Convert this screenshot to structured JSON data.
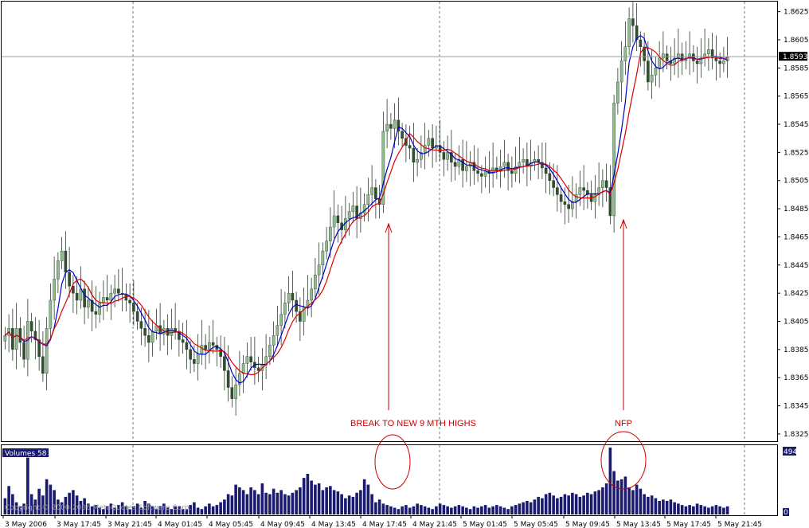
{
  "chart_data": {
    "type": "candlestick",
    "symbol_hint": "GBPUSD",
    "price_axis": {
      "ticks": [
        "1.8625",
        "1.8605",
        "1.8585",
        "1.8565",
        "1.8545",
        "1.8525",
        "1.8505",
        "1.8485",
        "1.8465",
        "1.8445",
        "1.8425",
        "1.8405",
        "1.8385",
        "1.8365",
        "1.8345",
        "1.8325"
      ],
      "min": 1.8321,
      "max": 1.8631,
      "current_price": "1.8593"
    },
    "time_axis": {
      "ticks": [
        "3 May 2006",
        "3 May 17:45",
        "3 May 21:45",
        "4 May 01:45",
        "4 May 05:45",
        "4 May 09:45",
        "4 May 13:45",
        "4 May 17:45",
        "4 May 21:45",
        "5 May 01:45",
        "5 May 05:45",
        "5 May 09:45",
        "5 May 13:45",
        "5 May 17:45",
        "5 May 21:45"
      ]
    },
    "close_series": [
      1.8395,
      1.84,
      1.8385,
      1.84,
      1.839,
      1.8378,
      1.8405,
      1.8398,
      1.8392,
      1.838,
      1.8368,
      1.84,
      1.842,
      1.8435,
      1.8448,
      1.8455,
      1.844,
      1.843,
      1.8425,
      1.842,
      1.8428,
      1.8415,
      1.842,
      1.8412,
      1.841,
      1.8418,
      1.8422,
      1.842,
      1.8425,
      1.8428,
      1.8425,
      1.8424,
      1.842,
      1.8418,
      1.8412,
      1.8405,
      1.84,
      1.8395,
      1.839,
      1.8398,
      1.8402,
      1.8396,
      1.84,
      1.8395,
      1.84,
      1.8398,
      1.8392,
      1.839,
      1.8385,
      1.8378,
      1.8375,
      1.8382,
      1.8388,
      1.8385,
      1.839,
      1.8388,
      1.8385,
      1.838,
      1.837,
      1.8358,
      1.835,
      1.836,
      1.8368,
      1.8375,
      1.838,
      1.8376,
      1.8372,
      1.837,
      1.8374,
      1.838,
      1.8388,
      1.8395,
      1.8402,
      1.841,
      1.8418,
      1.8425,
      1.842,
      1.8412,
      1.8405,
      1.8415,
      1.842,
      1.8428,
      1.8438,
      1.8445,
      1.8455,
      1.8462,
      1.8472,
      1.848,
      1.8475,
      1.847,
      1.8478,
      1.8483,
      1.8487,
      1.8478,
      1.8482,
      1.8488,
      1.8495,
      1.85,
      1.8492,
      1.8488,
      1.854,
      1.8545,
      1.8542,
      1.8548,
      1.854,
      1.8535,
      1.853,
      1.8528,
      1.8518,
      1.852,
      1.8525,
      1.853,
      1.8535,
      1.8528,
      1.853,
      1.8525,
      1.852,
      1.8525,
      1.8518,
      1.8515,
      1.852,
      1.8512,
      1.8515,
      1.8518,
      1.8512,
      1.851,
      1.8508,
      1.8512,
      1.851,
      1.8514,
      1.8512,
      1.8515,
      1.8518,
      1.8512,
      1.851,
      1.8515,
      1.8518,
      1.852,
      1.8515,
      1.8518,
      1.852,
      1.8518,
      1.8514,
      1.851,
      1.8505,
      1.85,
      1.8495,
      1.849,
      1.8488,
      1.8485,
      1.849,
      1.8495,
      1.85,
      1.8498,
      1.8495,
      1.849,
      1.8495,
      1.85,
      1.8505,
      1.85,
      1.848,
      1.856,
      1.8575,
      1.859,
      1.86,
      1.862,
      1.8615,
      1.8605,
      1.86,
      1.859,
      1.8575,
      1.858,
      1.8585,
      1.8592,
      1.8595,
      1.859,
      1.8588,
      1.8592,
      1.8595,
      1.859,
      1.8592,
      1.8595,
      1.859,
      1.8588,
      1.8592,
      1.8595,
      1.8598,
      1.8592,
      1.859,
      1.8588,
      1.859,
      1.8593
    ],
    "ma_fast_label": "blue",
    "ma_slow_label": "red",
    "volume": {
      "label": "Volumes 58",
      "max_tick": "494",
      "min_tick": "0",
      "values": [
        120,
        210,
        150,
        90,
        60,
        80,
        420,
        150,
        110,
        190,
        140,
        260,
        220,
        180,
        110,
        90,
        130,
        160,
        180,
        140,
        100,
        120,
        80,
        60,
        70,
        50,
        40,
        60,
        80,
        50,
        70,
        90,
        60,
        40,
        60,
        80,
        50,
        100,
        80,
        60,
        40,
        60,
        80,
        50,
        40,
        60,
        60,
        40,
        40,
        70,
        90,
        50,
        40,
        60,
        80,
        60,
        70,
        90,
        110,
        150,
        140,
        220,
        200,
        180,
        150,
        200,
        180,
        150,
        230,
        160,
        150,
        190,
        160,
        180,
        150,
        140,
        160,
        180,
        200,
        270,
        300,
        250,
        220,
        230,
        180,
        200,
        210,
        180,
        170,
        150,
        120,
        140,
        130,
        160,
        180,
        260,
        220,
        150,
        90,
        110,
        80,
        70,
        60,
        50,
        40,
        60,
        70,
        50,
        60,
        80,
        70,
        60,
        50,
        40,
        60,
        80,
        70,
        60,
        50,
        60,
        70,
        60,
        50,
        40,
        60,
        50,
        60,
        70,
        50,
        60,
        70,
        60,
        50,
        40,
        60,
        70,
        80,
        90,
        100,
        90,
        110,
        130,
        120,
        150,
        160,
        140,
        120,
        130,
        150,
        140,
        160,
        150,
        130,
        140,
        160,
        150,
        170,
        180,
        200,
        230,
        494,
        320,
        250,
        260,
        280,
        200,
        180,
        220,
        190,
        150,
        130,
        140,
        120,
        100,
        110,
        100,
        110,
        90,
        80,
        70,
        60,
        70,
        60,
        80,
        70,
        60,
        50,
        60,
        70,
        60,
        50,
        60
      ]
    },
    "annotations": [
      {
        "text": "BREAK TO NEW 9 MTH HIGHS",
        "bar": 95
      },
      {
        "text": "NFP",
        "bar": 160
      }
    ],
    "grid": "vertical dashed",
    "watermark": "Copyright © 2000-2006 MetaQuotes Software Corp."
  }
}
